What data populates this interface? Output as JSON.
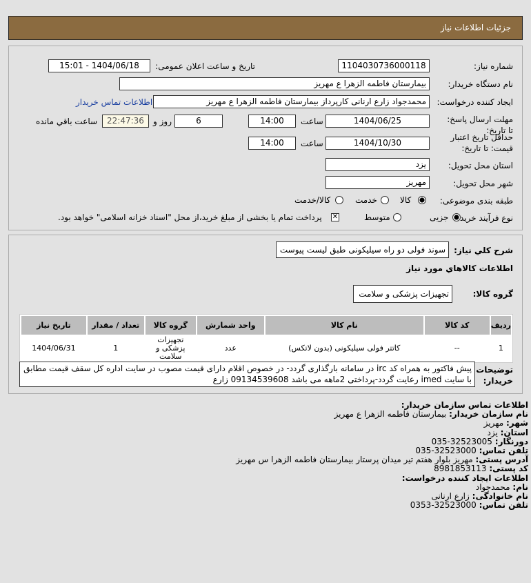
{
  "header": {
    "title": "جزئیات اطلاعات نیاز"
  },
  "form": {
    "need_number_label": "شماره نیاز:",
    "need_number": "1104030736000118",
    "announce_label": "تاریخ و ساعت اعلان عمومی:",
    "announce_value": "1404/06/18 - 15:01",
    "buyer_label": "نام دستگاه خریدار:",
    "buyer_value": "بیمارستان فاطمه الزهرا ع  مهریز",
    "creator_label": "ایجاد کننده درخواست:",
    "creator_value": "محمدجواد زارع ارنانی کارپرداز بیمارستان فاطمه الزهرا ع  مهریز",
    "contact_link": "اطلاعات تماس خریدار",
    "deadline_label": "مهلت ارسال پاسخ: تا تاریخ:",
    "deadline_date": "1404/06/25",
    "time_label": "ساعت",
    "deadline_time": "14:00",
    "days": "6",
    "days_label": "روز و",
    "remaining": "22:47:36",
    "remaining_label": "ساعت باقي مانده",
    "validity_label": "حداقل تاریخ اعتبار قیمت: تا تاریخ:",
    "validity_date": "1404/10/30",
    "validity_time": "14:00",
    "province_label": "استان محل تحویل:",
    "province": "یزد",
    "city_label": "شهر محل تحویل:",
    "city": "مهریز",
    "category_label": "طبقه بندی موضوعی:",
    "category_options": [
      "کالا",
      "خدمت",
      "کالا/خدمت"
    ],
    "category_selected": "کالا",
    "process_label": "نوع فرآیند خرید :",
    "process_options": [
      "جزیی",
      "متوسط"
    ],
    "process_selected": "جزیی",
    "payment_note": "پرداخت تمام یا بخشی از مبلغ خرید،از محل \"اسناد خزانه اسلامی\" خواهد بود."
  },
  "details": {
    "summary_label": "شرح کلي نیاز:",
    "summary": "سوند فولی دو راه سیلیکونی طبق لیست پیوست",
    "goods_heading": "اطلاعات کالاهاي مورد نیاز",
    "group_label": "گروه کالا:",
    "group": "تجهیزات پزشکی و سلامت",
    "table": {
      "headers": [
        "ردیف",
        "کد کالا",
        "نام کالا",
        "واحد شمارش",
        "گروه کالا",
        "تعداد / مقدار",
        "تاریخ نیاز"
      ],
      "rows": [
        [
          "1",
          "--",
          "کاتتر فولی سیلیکونی (بدون لاتکس)",
          "عدد",
          "تجهیزات پزشکی و سلامت",
          "1",
          "1404/06/31"
        ]
      ]
    },
    "desc_label": "توضیحات خریدار:",
    "desc": "پیش فاکتور به همراه کد irc در سامانه بارگذاری گردد- در خصوص اقلام دارای قیمت مصوب در سایت اداره کل سقف قیمت مطابق با سایت imed رعایت گردد-پرداختی 2ماهه می باشد 09134539608 زارع"
  },
  "contact": {
    "heading": "اطلاعات تماس سازمان خریدار:",
    "org_label": "نام سازمان خریدار:",
    "org": "بیمارستان فاطمه الزهرا ع مهریز",
    "city_label": "شهر:",
    "city": "مهریز",
    "province_label": "استان:",
    "province": "یزد",
    "fax_label": "دورنگار:",
    "fax": "32523005-035",
    "phone_label": "تلفن تماس:",
    "phone": "32523000-035",
    "address_label": "آدرس پستی:",
    "address": "مهریز بلوار هفتم تیر میدان پرستار بیمارستان فاطمه الزهرا س مهریز",
    "postal_label": "کد پستی:",
    "postal": "8981853113",
    "creator_heading": "اطلاعات ایجاد کننده درخواست:",
    "name_label": "نام:",
    "name": "محمدجواد",
    "family_label": "نام خانوادگی:",
    "family": "زارع ارنانی",
    "cphone_label": "تلفن تماس:",
    "cphone": "32523000-0353"
  }
}
